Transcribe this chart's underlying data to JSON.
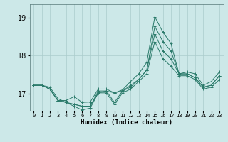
{
  "xlabel": "Humidex (Indice chaleur)",
  "ylabel": "",
  "bg_color": "#cce8e8",
  "grid_color": "#aacccc",
  "line_color": "#2a7a6a",
  "xlim": [
    -0.5,
    23.5
  ],
  "ylim": [
    16.55,
    19.35
  ],
  "yticks": [
    17,
    18,
    19
  ],
  "xtick_labels": [
    "0",
    "1",
    "2",
    "3",
    "4",
    "5",
    "6",
    "7",
    "8",
    "9",
    "10",
    "11",
    "12",
    "13",
    "14",
    "15",
    "16",
    "17",
    "18",
    "19",
    "20",
    "21",
    "22",
    "23"
  ],
  "series": {
    "line1": [
      17.22,
      17.22,
      17.12,
      16.82,
      16.82,
      16.92,
      16.77,
      16.78,
      17.12,
      17.12,
      17.02,
      17.1,
      17.32,
      17.52,
      17.82,
      19.02,
      18.62,
      18.32,
      17.52,
      17.57,
      17.52,
      17.22,
      17.32,
      17.57
    ],
    "line2": [
      17.22,
      17.22,
      17.17,
      16.87,
      16.77,
      16.72,
      16.67,
      16.67,
      17.07,
      17.07,
      16.77,
      17.07,
      17.17,
      17.37,
      17.62,
      18.77,
      18.37,
      18.12,
      17.52,
      17.52,
      17.42,
      17.17,
      17.22,
      17.47
    ],
    "line3": [
      17.22,
      17.22,
      17.12,
      16.82,
      16.77,
      16.72,
      16.67,
      16.67,
      17.02,
      17.07,
      17.02,
      17.07,
      17.22,
      17.37,
      17.62,
      18.57,
      18.12,
      17.92,
      17.52,
      17.52,
      17.42,
      17.17,
      17.22,
      17.47
    ],
    "line4": [
      17.22,
      17.22,
      17.12,
      16.82,
      16.77,
      16.67,
      16.57,
      16.62,
      17.02,
      17.02,
      16.72,
      17.02,
      17.12,
      17.32,
      17.52,
      18.37,
      17.92,
      17.72,
      17.47,
      17.47,
      17.37,
      17.12,
      17.17,
      17.37
    ]
  }
}
